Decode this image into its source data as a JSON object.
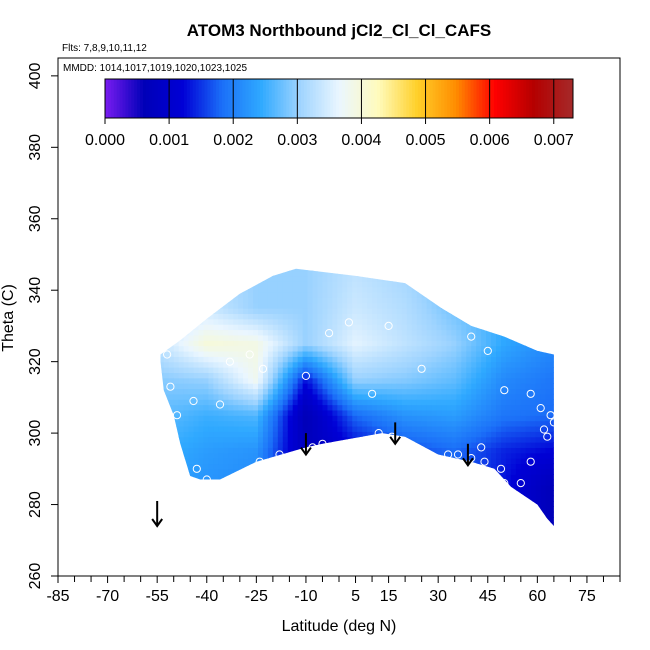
{
  "chart_data": {
    "type": "heatmap",
    "title": "ATOM3 Northbound jCl2_Cl_Cl_CAFS",
    "flights_label": "Flts: 7,8,9,10,11,12",
    "mmdd_label": "MMDD: 1014,1017,1019,1020,1023,1025",
    "xlabel": "Latitude (deg N)",
    "ylabel": "Theta (C)",
    "xlim": [
      -85,
      85
    ],
    "ylim": [
      260,
      405
    ],
    "x_ticks": [
      -85,
      -70,
      -55,
      -40,
      -25,
      -10,
      5,
      15,
      30,
      45,
      60,
      75
    ],
    "x_minor_ticks": [
      -80,
      -75,
      -65,
      -60,
      -50,
      -45,
      -35,
      -30,
      -20,
      -15,
      -5,
      0,
      10,
      20,
      25,
      35,
      40,
      50,
      55,
      65,
      70,
      80,
      85
    ],
    "y_ticks": [
      260,
      280,
      300,
      320,
      340,
      360,
      380,
      400
    ],
    "colorbar": {
      "min": 0.0,
      "max": 0.0073,
      "ticks": [
        "0.000",
        "0.001",
        "0.002",
        "0.003",
        "0.004",
        "0.005",
        "0.006",
        "0.007"
      ],
      "tick_values": [
        0.0,
        0.001,
        0.002,
        0.003,
        0.004,
        0.005,
        0.006,
        0.007
      ],
      "colors": [
        "#7a1cf0",
        "#0000b8",
        "#0000d6",
        "#1b6ff8",
        "#2fa9ff",
        "#9fd4ff",
        "#eaf6ff",
        "#fffbbd",
        "#ffd02a",
        "#ff8c00",
        "#ff0000",
        "#b40000",
        "#a52a2a"
      ]
    },
    "field_grid": {
      "lats": [
        -55,
        -40,
        -25,
        -10,
        5,
        20,
        35,
        50,
        65
      ],
      "thetas": [
        285,
        295,
        305,
        315,
        325,
        335,
        345
      ],
      "values": [
        [
          0.0024,
          0.0022,
          0.0021,
          0.001,
          0.0017,
          0.0017,
          0.0018,
          0.0013,
          0.0006
        ],
        [
          0.0025,
          0.0023,
          0.0022,
          0.0007,
          0.0012,
          0.0016,
          0.0018,
          0.0014,
          0.0012
        ],
        [
          0.0027,
          0.0025,
          0.0026,
          0.0006,
          0.0018,
          0.0022,
          0.0023,
          0.0019,
          0.0018
        ],
        [
          0.0029,
          0.003,
          0.0038,
          0.0013,
          0.003,
          0.0029,
          0.0027,
          0.0021,
          0.0019
        ],
        [
          0.0033,
          0.004,
          0.0039,
          0.003,
          0.0036,
          0.0033,
          0.003,
          0.0024,
          0.0021
        ],
        [
          0.0032,
          0.0034,
          0.003,
          0.003,
          0.0034,
          0.0032,
          0.0028,
          0.0025,
          0.0022
        ],
        [
          0.003,
          0.0032,
          0.003,
          0.003,
          0.0033,
          0.0031,
          0.0027,
          0.0025,
          0.0022
        ]
      ]
    },
    "domain_outline": [
      [
        -54,
        320
      ],
      [
        -53,
        312
      ],
      [
        -50,
        305
      ],
      [
        -48,
        297
      ],
      [
        -45,
        288
      ],
      [
        -42,
        287
      ],
      [
        -36,
        287
      ],
      [
        -25,
        292
      ],
      [
        -10,
        296
      ],
      [
        -5,
        297
      ],
      [
        13,
        300
      ],
      [
        20,
        299
      ],
      [
        30,
        294
      ],
      [
        40,
        292
      ],
      [
        47,
        290
      ],
      [
        52,
        285
      ],
      [
        60,
        280
      ],
      [
        63,
        276
      ],
      [
        65,
        274
      ],
      [
        65,
        322
      ],
      [
        60,
        323
      ],
      [
        50,
        327
      ],
      [
        40,
        330
      ],
      [
        31,
        335
      ],
      [
        20,
        342
      ],
      [
        5,
        344
      ],
      [
        -13,
        346
      ],
      [
        -20,
        344
      ],
      [
        -30,
        339
      ],
      [
        -40,
        332
      ],
      [
        -48,
        326
      ],
      [
        -54,
        322
      ]
    ],
    "sample_points": [
      [
        -52,
        322
      ],
      [
        -51,
        313
      ],
      [
        -49,
        305
      ],
      [
        -44,
        309
      ],
      [
        -43,
        290
      ],
      [
        -40,
        287
      ],
      [
        -36,
        308
      ],
      [
        -33,
        320
      ],
      [
        -27,
        322
      ],
      [
        -24,
        292
      ],
      [
        -23,
        318
      ],
      [
        -18,
        294
      ],
      [
        -10,
        316
      ],
      [
        -8,
        296
      ],
      [
        -5,
        297
      ],
      [
        -3,
        328
      ],
      [
        3,
        331
      ],
      [
        10,
        311
      ],
      [
        12,
        300
      ],
      [
        15,
        330
      ],
      [
        16,
        299
      ],
      [
        18,
        297
      ],
      [
        22,
        343
      ],
      [
        25,
        318
      ],
      [
        33,
        294
      ],
      [
        36,
        294
      ],
      [
        40,
        293
      ],
      [
        43,
        296
      ],
      [
        44,
        292
      ],
      [
        49,
        290
      ],
      [
        50,
        286
      ],
      [
        55,
        286
      ],
      [
        58,
        292
      ],
      [
        61,
        307
      ],
      [
        62,
        301
      ],
      [
        63,
        299
      ],
      [
        64,
        305
      ],
      [
        65,
        303
      ],
      [
        50,
        312
      ],
      [
        45,
        323
      ],
      [
        40,
        327
      ],
      [
        58,
        311
      ]
    ],
    "arrows": [
      {
        "lat": -55,
        "theta_top": 281,
        "theta_bottom": 274
      },
      {
        "lat": -10,
        "theta_top": 300,
        "theta_bottom": 294
      },
      {
        "lat": 17,
        "theta_top": 303,
        "theta_bottom": 297
      },
      {
        "lat": 39,
        "theta_top": 297,
        "theta_bottom": 291
      }
    ]
  }
}
